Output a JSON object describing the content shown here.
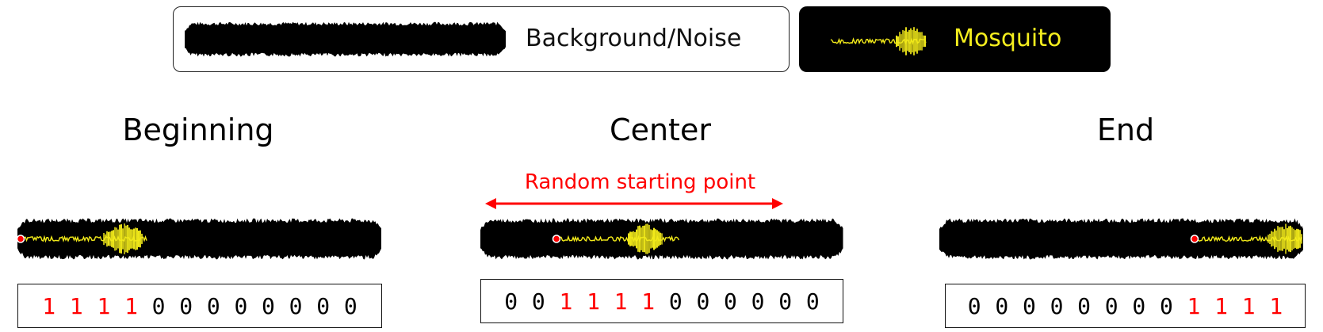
{
  "legend": {
    "background_label": "Background/Noise",
    "mosquito_label": "Mosquito"
  },
  "colors": {
    "noise": "#000000",
    "mosquito": "#f2ea1a",
    "mosquito_text": "#f5ee1e",
    "label_red": "#ff0000",
    "frame_black": "#111111"
  },
  "arrow": {
    "label": "Random starting point"
  },
  "panels": [
    {
      "title": "Beginning",
      "sequence": [
        1,
        1,
        1,
        1,
        0,
        0,
        0,
        0,
        0,
        0,
        0,
        0
      ]
    },
    {
      "title": "Center",
      "sequence": [
        0,
        0,
        1,
        1,
        1,
        1,
        0,
        0,
        0,
        0,
        0,
        0
      ]
    },
    {
      "title": "End",
      "sequence": [
        0,
        0,
        0,
        0,
        0,
        0,
        0,
        0,
        1,
        1,
        1,
        1
      ]
    }
  ]
}
